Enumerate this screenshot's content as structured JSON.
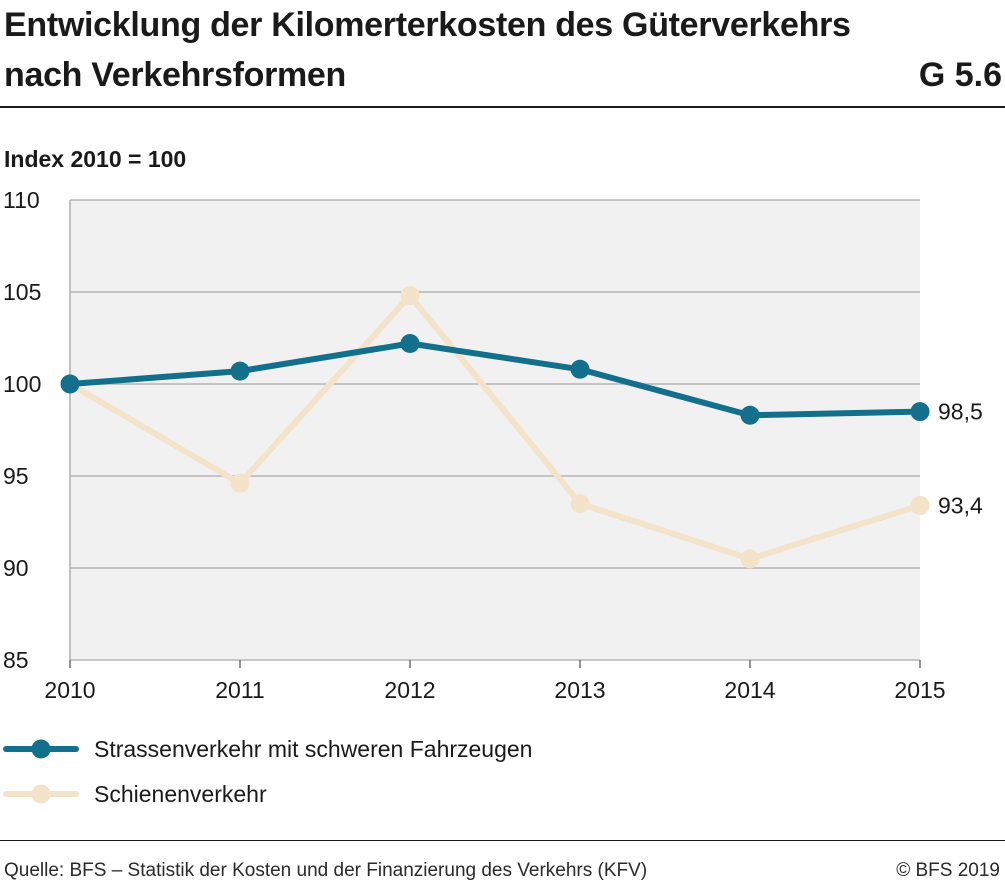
{
  "header": {
    "title": "Entwicklung der Kilomerterkosten des Güterverkehrs nach Verkehrsformen",
    "figure_number": "G 5.6"
  },
  "footer": {
    "source": "Quelle: BFS – Statistik der Kosten und der Finanzierung des Verkehrs (KFV)",
    "copyright": "© BFS 2019"
  },
  "colors": {
    "road": "#13708c",
    "rail": "#f2e3c9",
    "plot_bg": "#f1f1f1",
    "grid": "#b5b5b5"
  },
  "chart_data": {
    "type": "line",
    "ylabel": "Index 2010 = 100",
    "xlabel": "",
    "x": [
      "2010",
      "2011",
      "2012",
      "2013",
      "2014",
      "2015"
    ],
    "ylim": [
      85,
      110
    ],
    "yticks": [
      85,
      90,
      95,
      100,
      105,
      110
    ],
    "grid": true,
    "legend_position": "bottom-left",
    "series": [
      {
        "name": "Strassenverkehr mit schweren Fahrzeugen",
        "color": "#13708c",
        "values": [
          100,
          100.7,
          102.2,
          100.8,
          98.3,
          98.5
        ],
        "end_label": "98,5"
      },
      {
        "name": "Schienenverkehr",
        "color": "#f2e3c9",
        "values": [
          100,
          94.6,
          104.8,
          93.5,
          90.5,
          93.4
        ],
        "end_label": "93,4"
      }
    ]
  }
}
